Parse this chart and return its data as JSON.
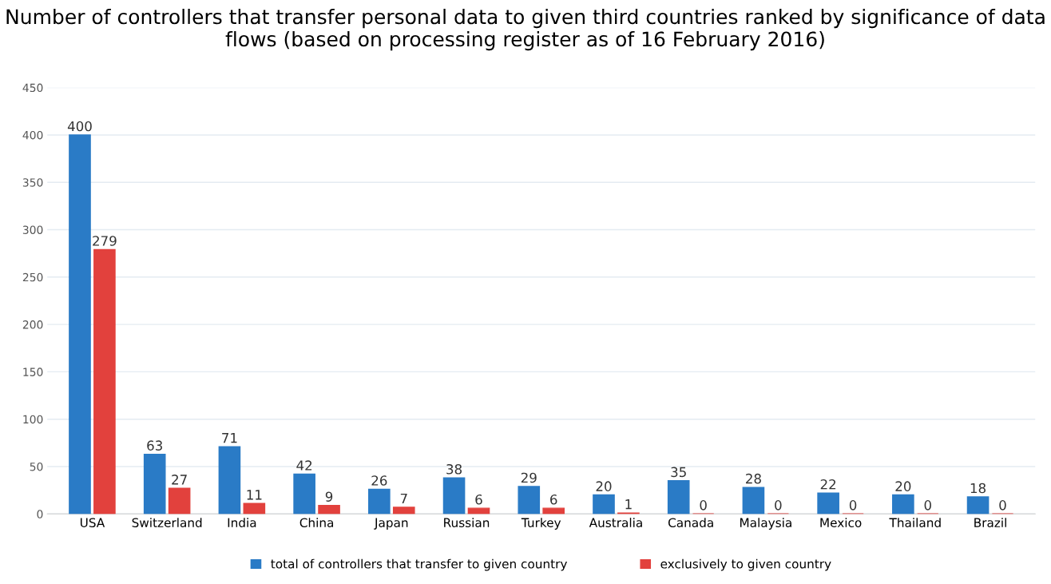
{
  "chart_data": {
    "type": "bar",
    "title": "Number of controllers that transfer personal data to given third countries ranked by significance of data flows (based on processing register as of 16 February 2016)",
    "categories": [
      "USA",
      "Switzerland",
      "India",
      "China",
      "Japan",
      "Russian",
      "Turkey",
      "Australia",
      "Canada",
      "Malaysia",
      "Mexico",
      "Thailand",
      "Brazil"
    ],
    "series": [
      {
        "name": "total of controllers that transfer to given country",
        "color": "#2a7bc6",
        "values": [
          400,
          63,
          71,
          42,
          26,
          38,
          29,
          20,
          35,
          28,
          22,
          20,
          18
        ]
      },
      {
        "name": "exclusively to given country",
        "color": "#e2413d",
        "values": [
          279,
          27,
          11,
          9,
          7,
          6,
          6,
          1,
          0,
          0,
          0,
          0,
          0
        ]
      }
    ],
    "ylim": [
      0,
      450
    ],
    "yticks": [
      0,
      50,
      100,
      150,
      200,
      250,
      300,
      350,
      400,
      450
    ],
    "grid": "y",
    "legend": "bottom",
    "data_labels": true
  }
}
